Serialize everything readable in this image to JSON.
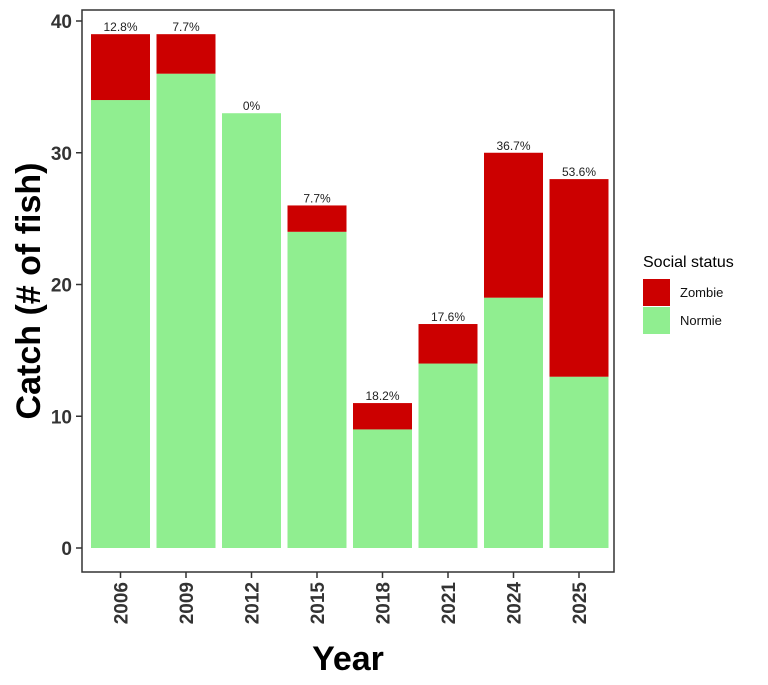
{
  "chart_data": {
    "type": "bar",
    "stacked": true,
    "categories": [
      "2006",
      "2009",
      "2012",
      "2015",
      "2018",
      "2021",
      "2024",
      "2025"
    ],
    "series": [
      {
        "name": "Normie",
        "values": [
          34,
          36,
          33,
          24,
          9,
          14,
          19,
          13
        ],
        "color": "#90EE90"
      },
      {
        "name": "Zombie",
        "values": [
          5,
          3,
          0,
          2,
          2,
          3,
          11,
          15
        ],
        "color": "#CC0000"
      }
    ],
    "bar_labels": [
      "12.8%",
      "7.7%",
      "0%",
      "7.7%",
      "18.2%",
      "17.6%",
      "36.7%",
      "53.6%"
    ],
    "xlabel": "Year",
    "ylabel": "Catch (# of fish)",
    "ylim": [
      0,
      40
    ],
    "yticks": [
      0,
      10,
      20,
      30,
      40
    ],
    "grid": false,
    "legend": {
      "title": "Social status",
      "position": "right",
      "entries": [
        {
          "label": "Zombie",
          "color": "#CC0000"
        },
        {
          "label": "Normie",
          "color": "#90EE90"
        }
      ]
    }
  }
}
